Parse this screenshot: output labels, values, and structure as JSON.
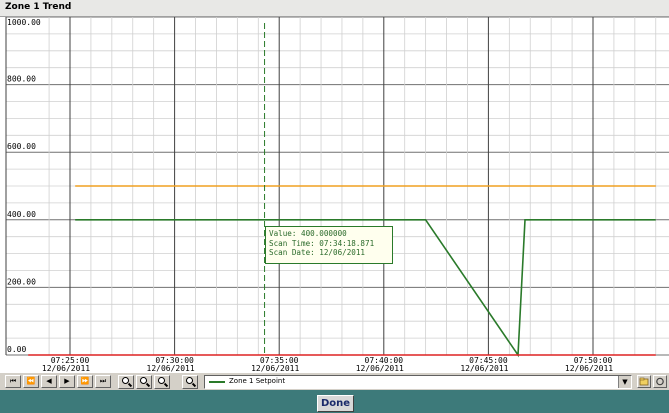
{
  "window": {
    "title": "Zone  1 Trend"
  },
  "tooltip": {
    "value_line": "Value: 400.000000",
    "time_line": "Scan Time: 07:34:18.871",
    "date_line": "Scan Date: 12/06/2011"
  },
  "toolbar": {
    "nav_buttons": [
      "⏮",
      "⏪",
      "◀",
      "▶",
      "⏩",
      "⏭"
    ],
    "legend_selected": "Zone 1 Setpoint",
    "dropdown_glyph": "▼"
  },
  "done_label": "Done",
  "colors": {
    "setpoint": "#2a7a2a",
    "orange": "#f0a020",
    "red": "#dd2222",
    "cursor": "#2a7a2a"
  },
  "chart_data": {
    "type": "line",
    "title": "",
    "xlabel": "",
    "ylabel": "",
    "ylim": [
      0,
      1000
    ],
    "y_ticks": [
      "0.00",
      "200.00",
      "400.00",
      "600.00",
      "800.00",
      "1000.00"
    ],
    "x_ticks": [
      {
        "time": "07:25:00",
        "date": "12/06/2011"
      },
      {
        "time": "07:30:00",
        "date": "12/06/2011"
      },
      {
        "time": "07:35:00",
        "date": "12/06/2011"
      },
      {
        "time": "07:40:00",
        "date": "12/06/2011"
      },
      {
        "time": "07:45:00",
        "date": "12/06/2011"
      },
      {
        "time": "07:50:00",
        "date": "12/06/2011"
      }
    ],
    "grid": true,
    "cursor_time": "07:34:18",
    "series": [
      {
        "name": "Zone 1 Setpoint",
        "color": "#2a7a2a",
        "x": [
          "07:25:15",
          "07:42:00",
          "07:46:25",
          "07:46:45",
          "07:53:00"
        ],
        "y": [
          400,
          400,
          0,
          400,
          400
        ]
      },
      {
        "color": "#f0a020",
        "x": [
          "07:25:15",
          "07:53:00"
        ],
        "y": [
          500,
          500
        ]
      },
      {
        "color": "#dd2222",
        "x": [
          "07:23:00",
          "07:53:00"
        ],
        "y": [
          0,
          0
        ]
      }
    ]
  }
}
